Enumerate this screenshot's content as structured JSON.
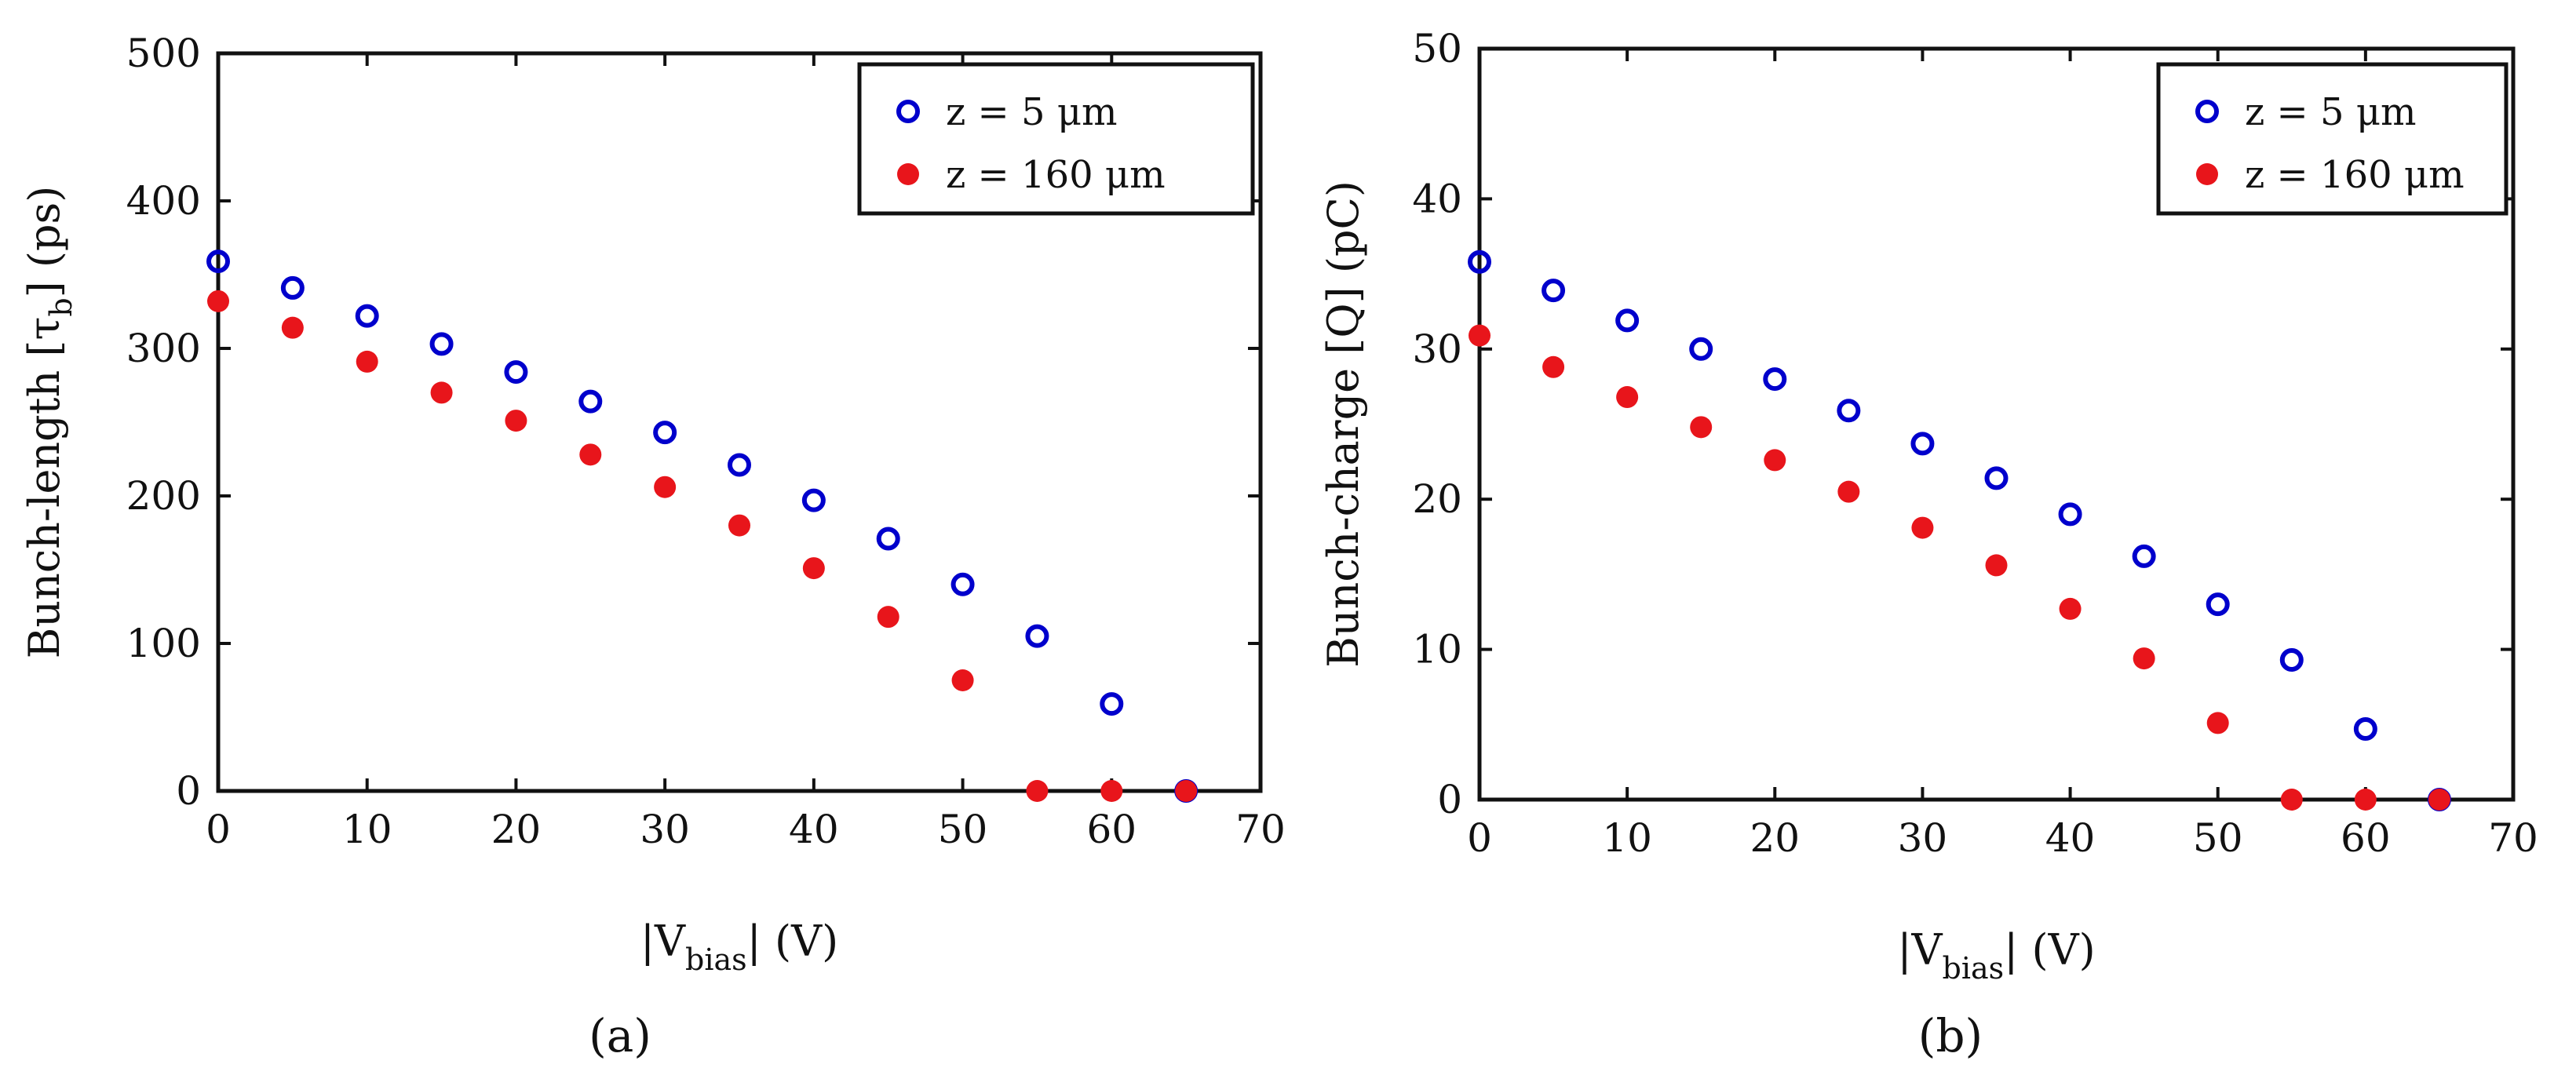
{
  "chart_data": [
    {
      "type": "scatter",
      "id": "a",
      "caption": "(a)",
      "xlabel": {
        "pre": "|V",
        "sub": "bias",
        "post": "| (V)"
      },
      "ylabel": {
        "pre": "Bunch-length [τ",
        "sub": "b",
        "post": "] (ps)"
      },
      "xlim": [
        0,
        70
      ],
      "ylim": [
        0,
        500
      ],
      "xticks": [
        0,
        10,
        20,
        30,
        40,
        50,
        60,
        70
      ],
      "yticks": [
        0,
        100,
        200,
        300,
        400,
        500
      ],
      "legend_position": "top-right",
      "series": [
        {
          "name": "z = 5 μm",
          "marker": "open-circle",
          "color": "#0000cc",
          "x": [
            0,
            5,
            10,
            15,
            20,
            25,
            30,
            35,
            40,
            45,
            50,
            55,
            60,
            65
          ],
          "y": [
            359,
            341,
            322,
            303,
            284,
            264,
            243,
            221,
            197,
            171,
            140,
            105,
            59,
            0
          ]
        },
        {
          "name": "z = 160 μm",
          "marker": "filled-circle",
          "color": "#e8151b",
          "x": [
            0,
            5,
            10,
            15,
            20,
            25,
            30,
            35,
            40,
            45,
            50,
            55,
            60,
            65
          ],
          "y": [
            332,
            314,
            291,
            270,
            251,
            228,
            206,
            180,
            151,
            118,
            75,
            0,
            0,
            0
          ]
        }
      ]
    },
    {
      "type": "scatter",
      "id": "b",
      "caption": "(b)",
      "xlabel": {
        "pre": "|V",
        "sub": "bias",
        "post": "| (V)"
      },
      "ylabel": {
        "pre": "Bunch-charge [Q] (pC)",
        "sub": "",
        "post": ""
      },
      "xlim": [
        0,
        70
      ],
      "ylim": [
        0,
        50
      ],
      "xticks": [
        0,
        10,
        20,
        30,
        40,
        50,
        60,
        70
      ],
      "yticks": [
        0,
        10,
        20,
        30,
        40,
        50
      ],
      "legend_position": "top-right",
      "series": [
        {
          "name": "z = 5 μm",
          "marker": "open-circle",
          "color": "#0000cc",
          "x": [
            0,
            5,
            10,
            15,
            20,
            25,
            30,
            35,
            40,
            45,
            50,
            55,
            60,
            65
          ],
          "y": [
            35.8,
            33.9,
            31.9,
            30.0,
            28.0,
            25.9,
            23.7,
            21.4,
            19.0,
            16.2,
            13.0,
            9.3,
            4.7,
            0
          ]
        },
        {
          "name": "z = 160 μm",
          "marker": "filled-circle",
          "color": "#e8151b",
          "x": [
            0,
            5,
            10,
            15,
            20,
            25,
            30,
            35,
            40,
            45,
            50,
            55,
            60,
            65
          ],
          "y": [
            30.9,
            28.8,
            26.8,
            24.8,
            22.6,
            20.5,
            18.1,
            15.6,
            12.7,
            9.4,
            5.1,
            0,
            0,
            0
          ]
        }
      ]
    }
  ]
}
